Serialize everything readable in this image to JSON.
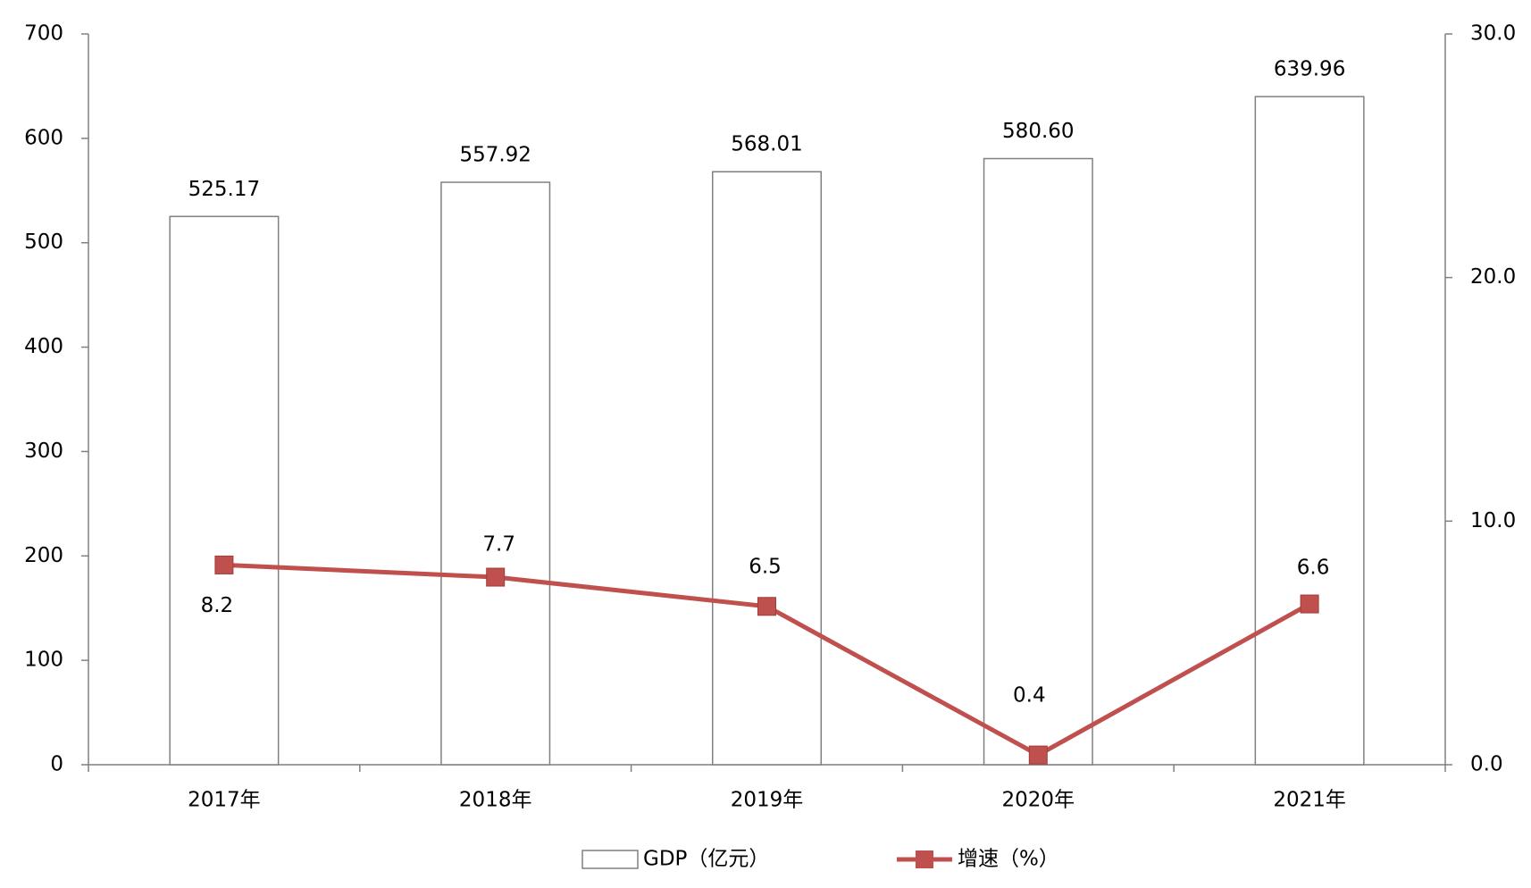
{
  "chart_data": {
    "type": "bar",
    "categories": [
      "2017年",
      "2018年",
      "2019年",
      "2020年",
      "2021年"
    ],
    "series": [
      {
        "name": "GDP（亿元）",
        "type": "bar",
        "color": "#ffffff",
        "values": [
          525.17,
          557.92,
          568.01,
          580.6,
          639.96
        ],
        "value_labels": [
          "525.17",
          "557.92",
          "568.01",
          "580.60",
          "639.96"
        ]
      },
      {
        "name": "增速（%）",
        "type": "line",
        "axis": "y2",
        "color": "#c0504d",
        "values": [
          8.2,
          7.7,
          6.5,
          0.4,
          6.6
        ]
      }
    ],
    "ylim": [
      0,
      700
    ],
    "yticks": [
      0,
      100,
      200,
      300,
      400,
      500,
      600,
      700
    ],
    "y2lim": [
      0,
      30
    ],
    "y2ticks": [
      {
        "value": 0,
        "label": "0.0"
      },
      {
        "value": 10,
        "label": "10.0"
      },
      {
        "value": 20,
        "label": "20.0"
      },
      {
        "value": 30,
        "label": "30.0"
      }
    ],
    "grid": false,
    "legend": "bottom"
  }
}
